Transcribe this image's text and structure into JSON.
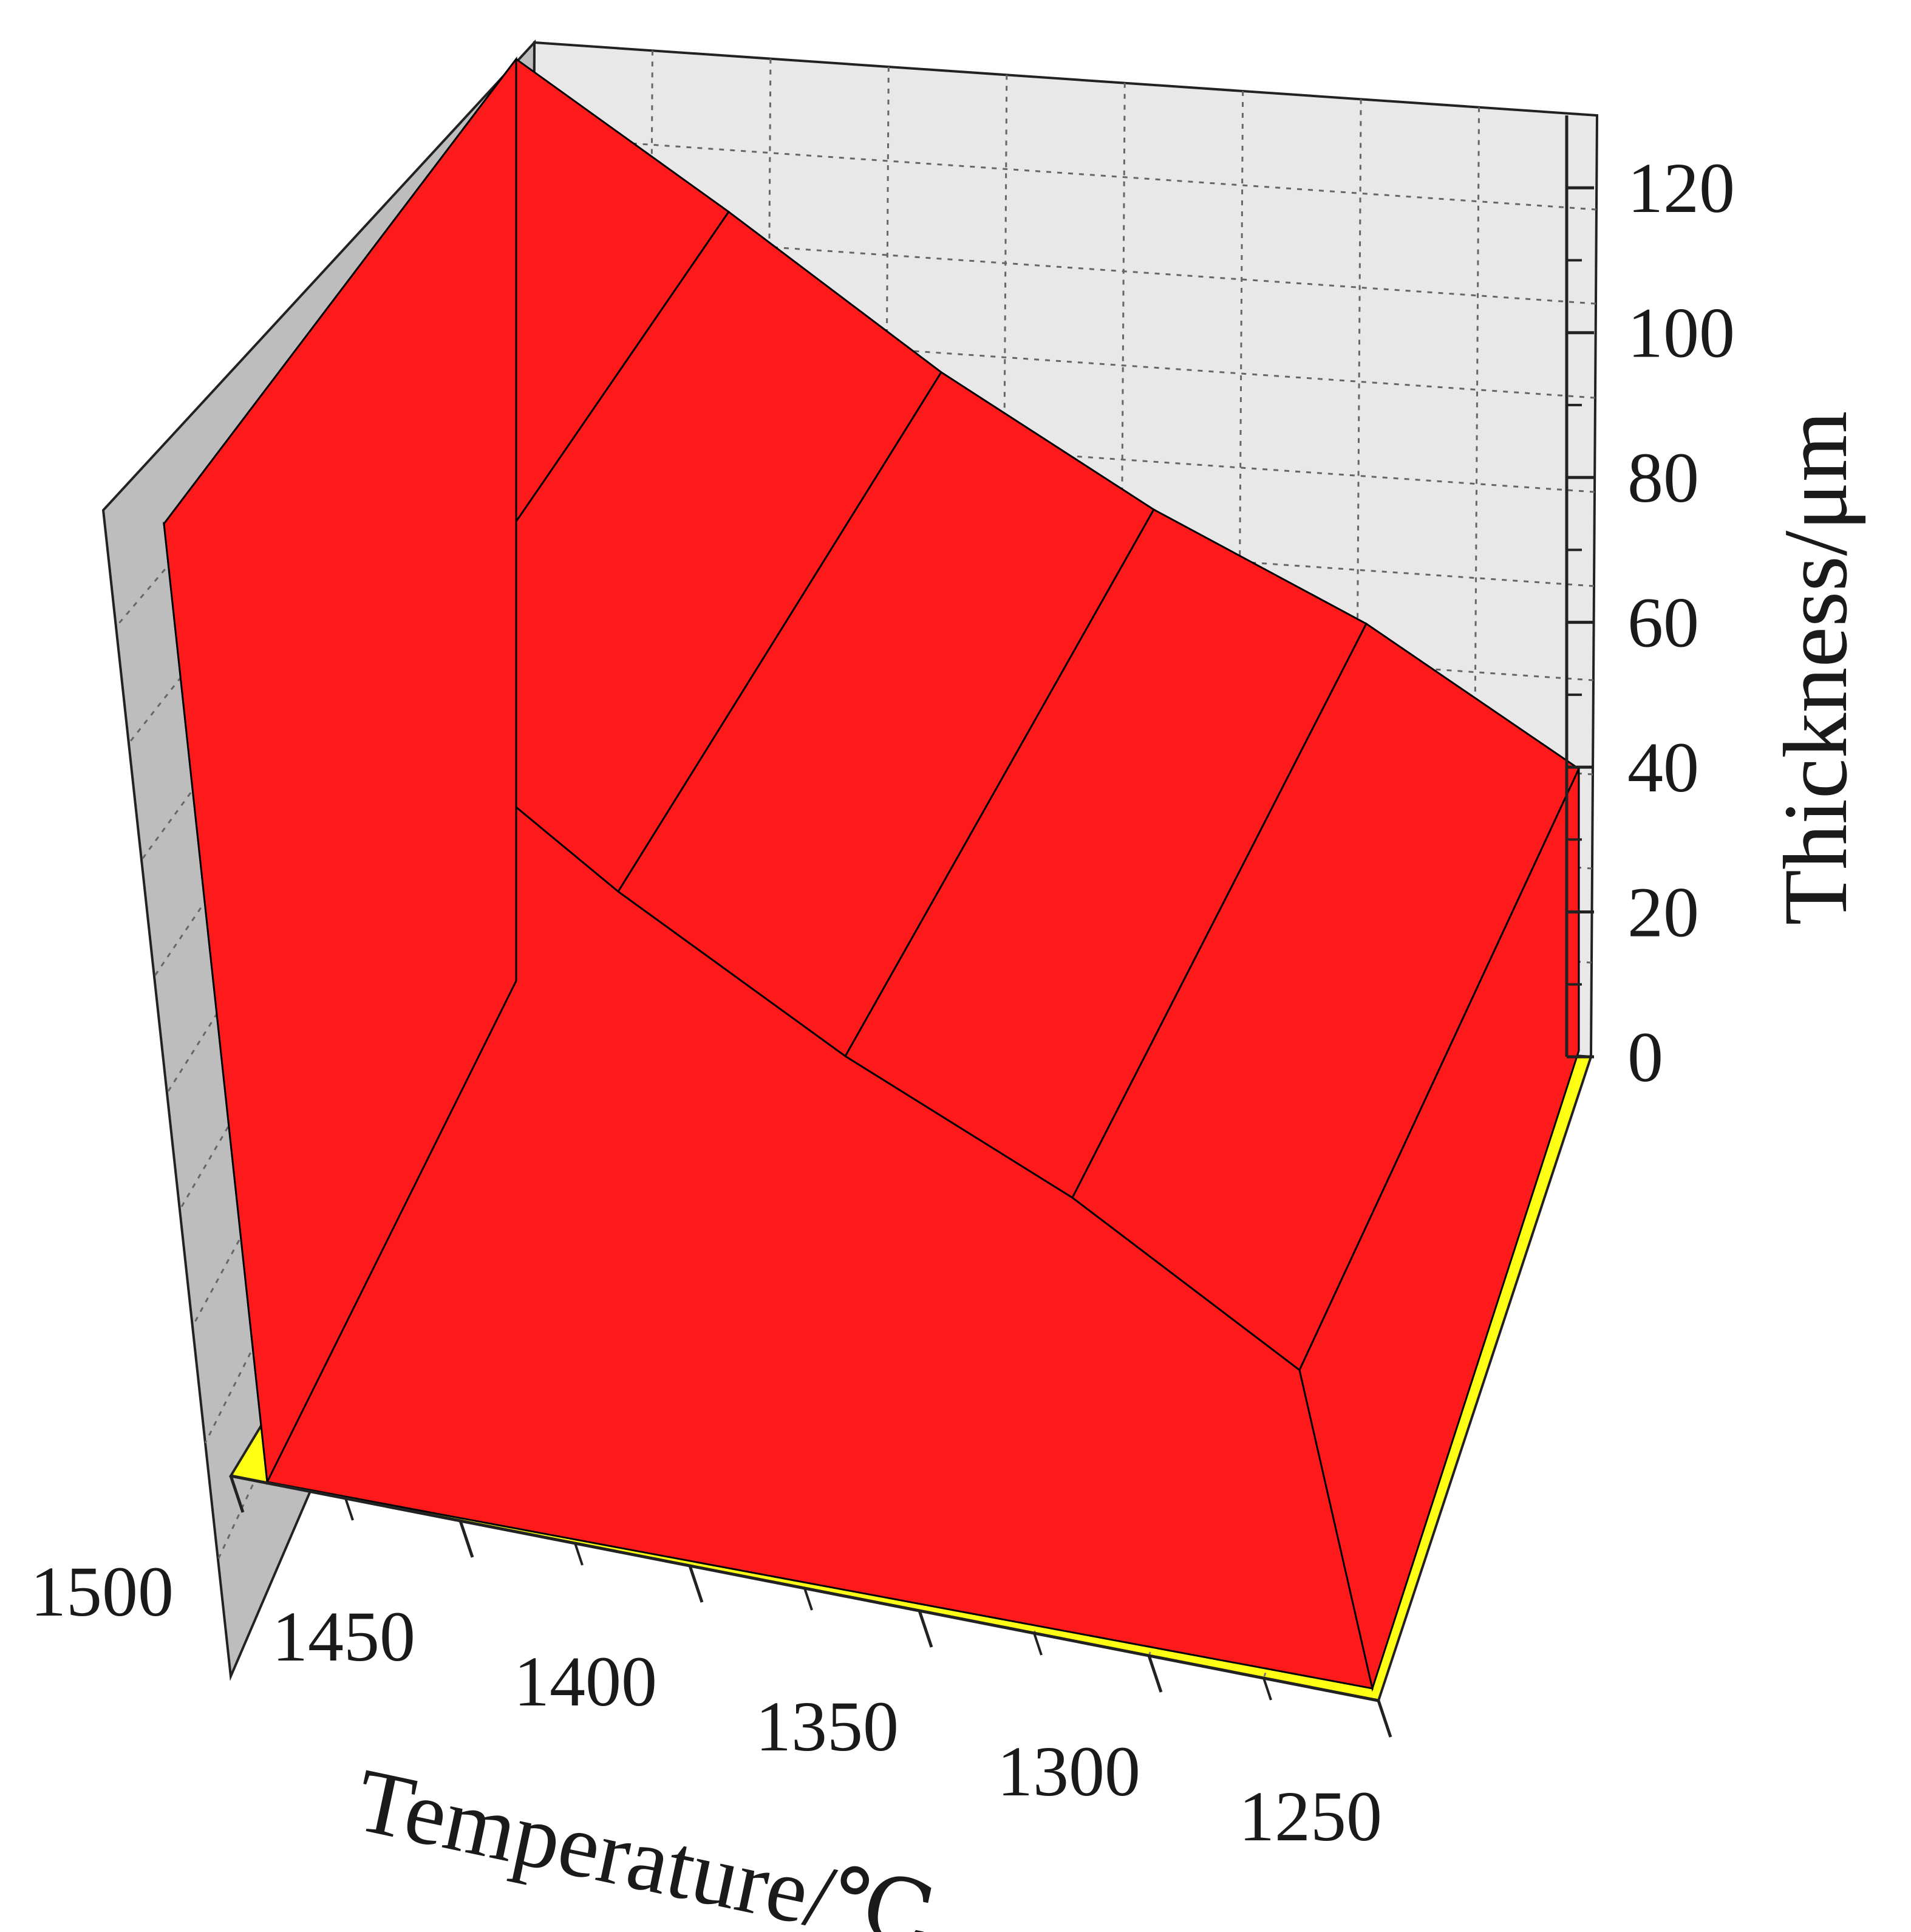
{
  "chart_data": {
    "type": "area",
    "title": "",
    "xlabel": "Temperature/℃",
    "ylabel": "Thickness/μm",
    "x": [
      1500,
      1450,
      1400,
      1350,
      1300,
      1250
    ],
    "x_ticks": [
      "1500",
      "1450",
      "1400",
      "1350",
      "1300",
      "1250"
    ],
    "xlim": [
      1250,
      1500
    ],
    "ylim": [
      0,
      130
    ],
    "y_ticks": [
      "0",
      "20",
      "40",
      "60",
      "80",
      "100",
      "120"
    ],
    "series": [
      {
        "values": [
          118,
          100,
          81,
          65,
          52,
          35
        ]
      }
    ],
    "view": "3d",
    "grid": true,
    "colors": {
      "surface": "#fe1a1a",
      "floor": "#ffff14",
      "back_wall": "#e8e8e8",
      "side_wall": "#bdbdbd",
      "edge": "#000000"
    }
  }
}
